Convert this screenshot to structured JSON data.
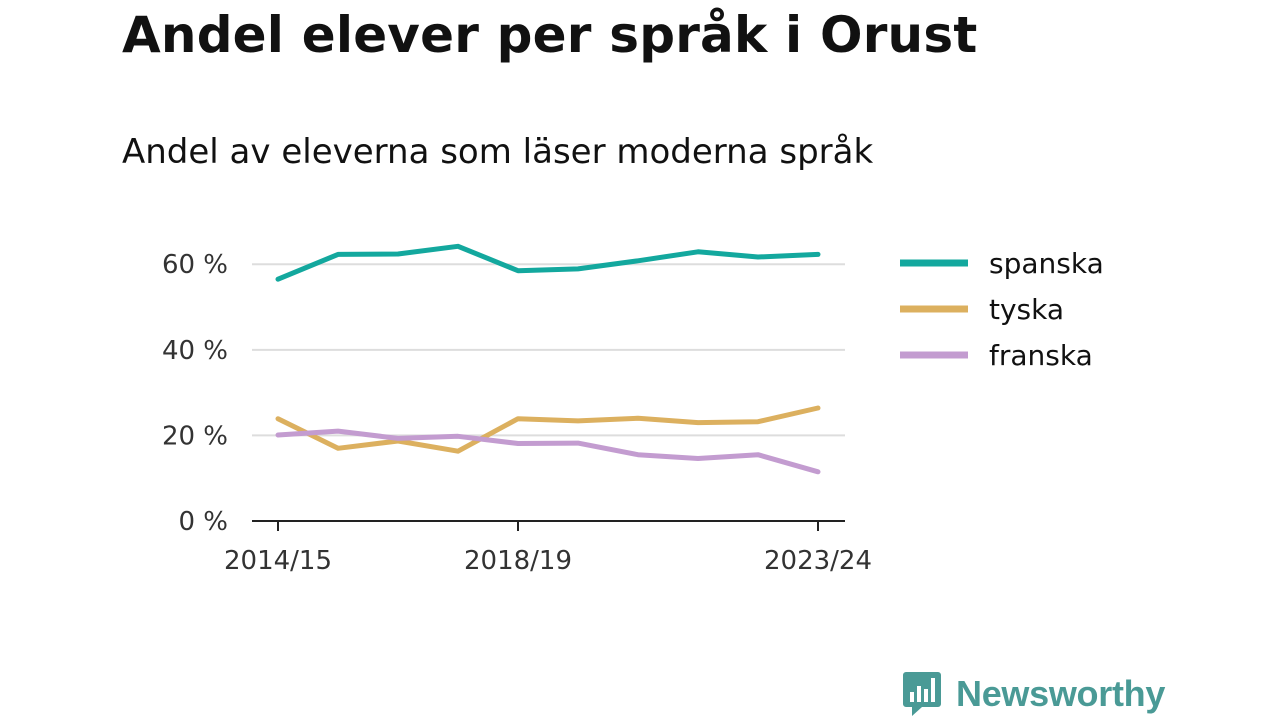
{
  "chart_data": {
    "type": "line",
    "title": "Andel elever per språk i Orust",
    "subtitle": "Andel av eleverna som läser moderna språk",
    "x": [
      "2014/15",
      "2015/16",
      "2016/17",
      "2017/18",
      "2018/19",
      "2019/20",
      "2020/21",
      "2021/22",
      "2022/23",
      "2023/24"
    ],
    "x_tick_labels": [
      "2014/15",
      "2018/19",
      "2023/24"
    ],
    "y_ticks": [
      0,
      20,
      40,
      60
    ],
    "y_tick_labels": [
      "0 %",
      "20 %",
      "40 %",
      "60 %"
    ],
    "ylim": [
      0,
      68
    ],
    "grid": true,
    "legend_position": "right",
    "series": [
      {
        "name": "spanska",
        "color": "#13a89e",
        "values": [
          56.5,
          62.3,
          62.4,
          64.2,
          58.5,
          58.9,
          60.8,
          62.9,
          61.7,
          62.3
        ]
      },
      {
        "name": "tyska",
        "color": "#dcb05f",
        "values": [
          23.9,
          17.0,
          18.7,
          16.3,
          23.9,
          23.4,
          24.0,
          23.0,
          23.2,
          26.4
        ]
      },
      {
        "name": "franska",
        "color": "#c39cd0",
        "values": [
          20.1,
          21.0,
          19.3,
          19.8,
          18.1,
          18.2,
          15.5,
          14.6,
          15.5,
          11.5
        ]
      }
    ]
  },
  "brand": {
    "name": "Newsworthy",
    "color": "#4a9a96",
    "icon": "bar-chart-speech-bubble-icon"
  }
}
